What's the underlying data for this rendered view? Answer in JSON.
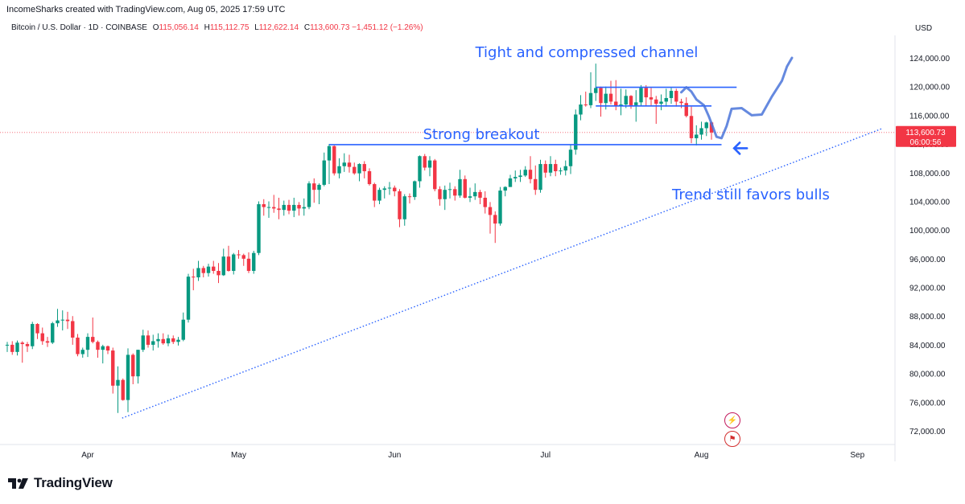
{
  "header": {
    "credit": "IncomeSharks created with TradingView.com, Aug 05, 2025 17:59 UTC",
    "symbol": "Bitcoin / U.S. Dollar · 1D · COINBASE",
    "ohlc": {
      "open_label": "O",
      "open": "115,056.14",
      "high_label": "H",
      "high": "115,112.75",
      "low_label": "L",
      "low": "112,622.14",
      "close_label": "C",
      "close": "113,600.73",
      "change": "−1,451.12 (−1.26%)"
    },
    "currency": "USD"
  },
  "price_tag": {
    "price": "113,600.73",
    "countdown": "06:00:56",
    "value": 113600.73
  },
  "footer": {
    "brand": "TradingView",
    "logo_icon": "tradingview-logo-icon"
  },
  "colors": {
    "up": "#089981",
    "down": "#f23645",
    "annotation": "#2962ff",
    "trend": "#2962ff",
    "price_line": "#f23645"
  },
  "chart_data": {
    "type": "candlestick",
    "y_axis": {
      "min": 70000,
      "max": 128000,
      "ticks": [
        72000,
        76000,
        80000,
        84000,
        88000,
        92000,
        96000,
        100000,
        104000,
        108000,
        112000,
        116000,
        120000,
        124000
      ],
      "position": "right"
    },
    "x_axis": {
      "labels": [
        {
          "label": "Apr",
          "index": 16
        },
        {
          "label": "May",
          "index": 46
        },
        {
          "label": "Jun",
          "index": 77
        },
        {
          "label": "Jul",
          "index": 107
        },
        {
          "label": "Aug",
          "index": 138
        },
        {
          "label": "Sep",
          "index": 169
        }
      ],
      "start_date": "Mar 15, 2025"
    },
    "candles": [
      [
        83900,
        84400,
        83000,
        84000
      ],
      [
        84000,
        84500,
        82600,
        83000
      ],
      [
        83000,
        84600,
        82500,
        84300
      ],
      [
        84300,
        84500,
        81500,
        84100
      ],
      [
        84100,
        84400,
        83000,
        83800
      ],
      [
        83800,
        87200,
        83400,
        86900
      ],
      [
        86900,
        87000,
        84800,
        85600
      ],
      [
        85600,
        86400,
        84000,
        84500
      ],
      [
        84500,
        85100,
        83700,
        84300
      ],
      [
        84300,
        87200,
        84100,
        87000
      ],
      [
        87000,
        89000,
        86500,
        87400
      ],
      [
        87400,
        88800,
        86000,
        87500
      ],
      [
        87500,
        88600,
        86200,
        87300
      ],
      [
        87300,
        88000,
        84000,
        85000
      ],
      [
        85000,
        85500,
        82400,
        82700
      ],
      [
        82700,
        83600,
        82200,
        83300
      ],
      [
        83300,
        85600,
        82300,
        85100
      ],
      [
        85100,
        87800,
        84200,
        84400
      ],
      [
        84400,
        84600,
        82200,
        83300
      ],
      [
        83300,
        84000,
        81400,
        83800
      ],
      [
        83800,
        83900,
        82700,
        83200
      ],
      [
        83200,
        83600,
        77200,
        78300
      ],
      [
        78300,
        81000,
        74500,
        79100
      ],
      [
        79100,
        79300,
        76200,
        76300
      ],
      [
        76300,
        83500,
        74600,
        82600
      ],
      [
        82600,
        82800,
        78500,
        79600
      ],
      [
        79600,
        83300,
        78600,
        83300
      ],
      [
        83300,
        86100,
        83000,
        85300
      ],
      [
        85300,
        86000,
        83600,
        84000
      ],
      [
        84000,
        85400,
        83200,
        84500
      ],
      [
        84500,
        85600,
        83600,
        84800
      ],
      [
        84800,
        85600,
        84000,
        84200
      ],
      [
        84200,
        85400,
        83800,
        84900
      ],
      [
        84900,
        85300,
        84100,
        84400
      ],
      [
        84400,
        85100,
        83900,
        84700
      ],
      [
        84700,
        88500,
        84500,
        87500
      ],
      [
        87500,
        93900,
        87100,
        93500
      ],
      [
        93500,
        94600,
        91600,
        93400
      ],
      [
        93400,
        95700,
        92900,
        94700
      ],
      [
        94700,
        95000,
        93400,
        94000
      ],
      [
        94000,
        95300,
        93500,
        94900
      ],
      [
        94900,
        95700,
        93900,
        94300
      ],
      [
        94300,
        95400,
        92600,
        93700
      ],
      [
        93700,
        97400,
        93600,
        96300
      ],
      [
        96300,
        97800,
        94200,
        94300
      ],
      [
        94300,
        96800,
        93800,
        96600
      ],
      [
        96600,
        97200,
        96000,
        96500
      ],
      [
        96500,
        96700,
        95000,
        96000
      ],
      [
        96000,
        96900,
        94000,
        94300
      ],
      [
        94300,
        97100,
        93900,
        96800
      ],
      [
        96800,
        104000,
        96500,
        103600
      ],
      [
        103600,
        104300,
        102000,
        103200
      ],
      [
        103200,
        104000,
        101700,
        103200
      ],
      [
        103200,
        104900,
        102400,
        103000
      ],
      [
        103000,
        104500,
        101500,
        102800
      ],
      [
        102800,
        104100,
        102000,
        103500
      ],
      [
        103500,
        104200,
        102200,
        102700
      ],
      [
        102700,
        104500,
        101800,
        103500
      ],
      [
        103500,
        103900,
        102000,
        103000
      ],
      [
        103000,
        104400,
        102000,
        103200
      ],
      [
        103200,
        106800,
        102900,
        106500
      ],
      [
        106500,
        107200,
        103800,
        105600
      ],
      [
        105600,
        106500,
        103600,
        106300
      ],
      [
        106300,
        110800,
        106100,
        109700
      ],
      [
        109700,
        112000,
        106400,
        111700
      ],
      [
        111700,
        111800,
        107600,
        107900
      ],
      [
        107900,
        110000,
        107200,
        108900
      ],
      [
        108900,
        110700,
        108100,
        109400
      ],
      [
        109400,
        110500,
        108000,
        108800
      ],
      [
        108800,
        109400,
        107700,
        107900
      ],
      [
        107900,
        109300,
        106800,
        109200
      ],
      [
        109200,
        109600,
        107200,
        108200
      ],
      [
        108200,
        108600,
        106200,
        106400
      ],
      [
        106400,
        106600,
        103200,
        104100
      ],
      [
        104100,
        105900,
        103600,
        105600
      ],
      [
        105600,
        106100,
        104400,
        105800
      ],
      [
        105800,
        106700,
        104900,
        105900
      ],
      [
        105900,
        106200,
        104700,
        105400
      ],
      [
        105400,
        105700,
        100400,
        101500
      ],
      [
        101500,
        105000,
        100600,
        104700
      ],
      [
        104700,
        105100,
        103700,
        104600
      ],
      [
        104600,
        106900,
        104200,
        106800
      ],
      [
        106800,
        110400,
        105900,
        110300
      ],
      [
        110300,
        110600,
        108300,
        108700
      ],
      [
        108700,
        110300,
        107500,
        109700
      ],
      [
        109700,
        109900,
        105400,
        105700
      ],
      [
        105700,
        106100,
        103400,
        104300
      ],
      [
        104300,
        106200,
        102800,
        105600
      ],
      [
        105600,
        106600,
        104400,
        105700
      ],
      [
        105700,
        106100,
        104100,
        104800
      ],
      [
        104800,
        108400,
        104500,
        107100
      ],
      [
        107100,
        107600,
        104400,
        104500
      ],
      [
        104500,
        105900,
        103900,
        104700
      ],
      [
        104700,
        106500,
        104200,
        105300
      ],
      [
        105300,
        105600,
        103600,
        104500
      ],
      [
        104500,
        105400,
        102300,
        103200
      ],
      [
        103200,
        103900,
        99500,
        102100
      ],
      [
        102100,
        102600,
        98200,
        100900
      ],
      [
        100900,
        106000,
        100600,
        105500
      ],
      [
        105500,
        106100,
        104700,
        106000
      ],
      [
        106000,
        107700,
        106000,
        107200
      ],
      [
        107200,
        108300,
        106700,
        107400
      ],
      [
        107400,
        108400,
        106700,
        107600
      ],
      [
        107600,
        108900,
        107400,
        108400
      ],
      [
        108400,
        110300,
        106500,
        107100
      ],
      [
        107100,
        109000,
        104900,
        105600
      ],
      [
        105600,
        109800,
        105200,
        109200
      ],
      [
        109200,
        109700,
        107300,
        108000
      ],
      [
        108000,
        110300,
        107500,
        109200
      ],
      [
        109200,
        109800,
        107500,
        108200
      ],
      [
        108200,
        108700,
        107700,
        108300
      ],
      [
        108300,
        109700,
        107600,
        108900
      ],
      [
        108900,
        111900,
        107800,
        111200
      ],
      [
        111200,
        116800,
        110500,
        116100
      ],
      [
        116100,
        118800,
        115300,
        117500
      ],
      [
        117500,
        119300,
        117200,
        117400
      ],
      [
        117400,
        122000,
        117000,
        119100
      ],
      [
        119100,
        123200,
        118000,
        119800
      ],
      [
        119800,
        120000,
        115800,
        117700
      ],
      [
        117700,
        120000,
        116800,
        119000
      ],
      [
        119000,
        120800,
        117500,
        117900
      ],
      [
        117900,
        120900,
        116700,
        117300
      ],
      [
        117300,
        119700,
        116000,
        117500
      ],
      [
        117500,
        119600,
        117000,
        118700
      ],
      [
        118700,
        118800,
        116900,
        117400
      ],
      [
        117400,
        119500,
        115100,
        117800
      ],
      [
        117800,
        120200,
        117300,
        119800
      ],
      [
        119800,
        120200,
        117300,
        118500
      ],
      [
        118500,
        119800,
        117300,
        118200
      ],
      [
        118200,
        118700,
        114800,
        117600
      ],
      [
        117600,
        118900,
        116700,
        117900
      ],
      [
        117900,
        119700,
        117200,
        118400
      ],
      [
        118400,
        119800,
        117600,
        119400
      ],
      [
        119400,
        119700,
        117200,
        117900
      ],
      [
        117900,
        118300,
        117000,
        117700
      ],
      [
        117700,
        118500,
        115700,
        115900
      ],
      [
        115900,
        117200,
        112100,
        112800
      ],
      [
        112800,
        114600,
        111800,
        113300
      ],
      [
        113300,
        115100,
        112600,
        114200
      ],
      [
        114200,
        115100,
        113100,
        115000
      ],
      [
        115000,
        115100,
        112600,
        113600
      ]
    ],
    "annotations": [
      {
        "text": "Tight and compressed channel"
      },
      {
        "text": "Strong breakout"
      },
      {
        "text": "Trend still favors bulls"
      }
    ],
    "levels": {
      "breakout": 111900,
      "channel_top": 119900,
      "channel_bottom": 117300
    },
    "trendline": {
      "from": {
        "index": 23,
        "price": 74000
      },
      "to_index": 174,
      "slope_per_candle": 266
    }
  }
}
